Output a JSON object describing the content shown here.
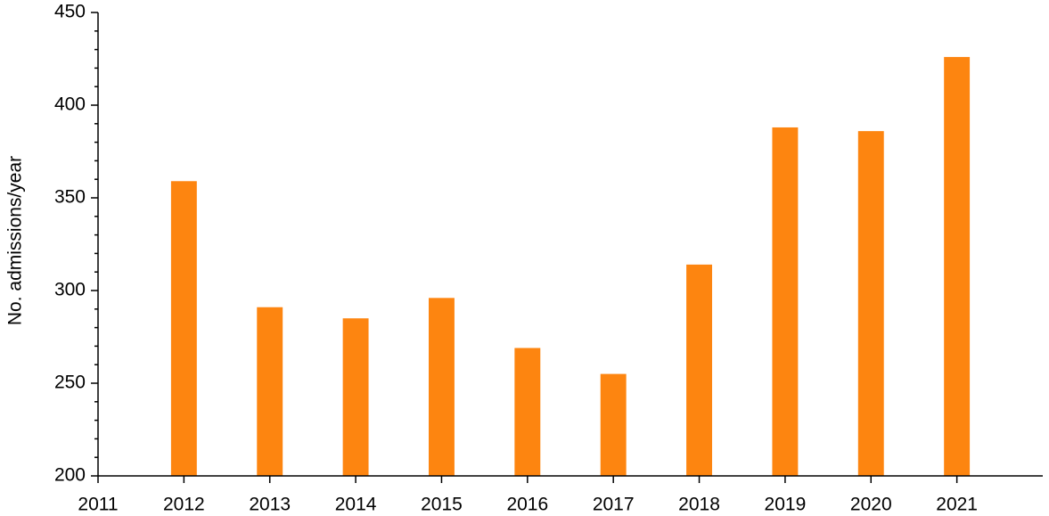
{
  "chart_data": {
    "type": "bar",
    "y_label": "No. admissions/year",
    "x": [
      2012,
      2013,
      2014,
      2015,
      2016,
      2017,
      2018,
      2019,
      2020,
      2021
    ],
    "values": [
      359,
      291,
      285,
      296,
      269,
      255,
      314,
      388,
      386,
      426
    ],
    "color": "#fd8510",
    "xlim": [
      2011,
      2022
    ],
    "xticks": [
      2011,
      2012,
      2013,
      2014,
      2015,
      2016,
      2017,
      2018,
      2019,
      2020,
      2021
    ],
    "ylim": [
      200,
      450
    ],
    "yticks": [
      200,
      250,
      300,
      350,
      400,
      450
    ]
  }
}
